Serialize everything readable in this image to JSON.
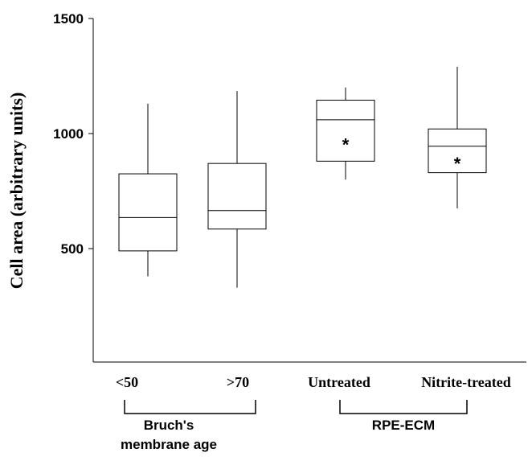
{
  "chart_data": {
    "type": "box",
    "ylabel": "Cell area (arbitrary units)",
    "ylim": [
      0,
      1500
    ],
    "yticks": [
      500,
      1000,
      1500
    ],
    "categories": [
      "<50",
      ">70",
      "Untreated",
      "Nitrite-treated"
    ],
    "boxes": [
      {
        "category": "<50",
        "min": 380,
        "q1": 490,
        "median": 635,
        "q3": 825,
        "max": 1130,
        "marker": ""
      },
      {
        "category": ">70",
        "min": 330,
        "q1": 585,
        "median": 665,
        "q3": 870,
        "max": 1185,
        "marker": ""
      },
      {
        "category": "Untreated",
        "min": 800,
        "q1": 880,
        "median": 1060,
        "q3": 1145,
        "max": 1200,
        "marker": "*"
      },
      {
        "category": "Nitrite-treated",
        "min": 675,
        "q1": 830,
        "median": 945,
        "q3": 1020,
        "max": 1290,
        "marker": "*"
      }
    ],
    "groups": [
      {
        "label_lines": [
          "Bruch's",
          "membrane age"
        ],
        "categories": [
          "<50",
          ">70"
        ]
      },
      {
        "label_lines": [
          "RPE-ECM"
        ],
        "categories": [
          "Untreated",
          "Nitrite-treated"
        ]
      }
    ]
  }
}
